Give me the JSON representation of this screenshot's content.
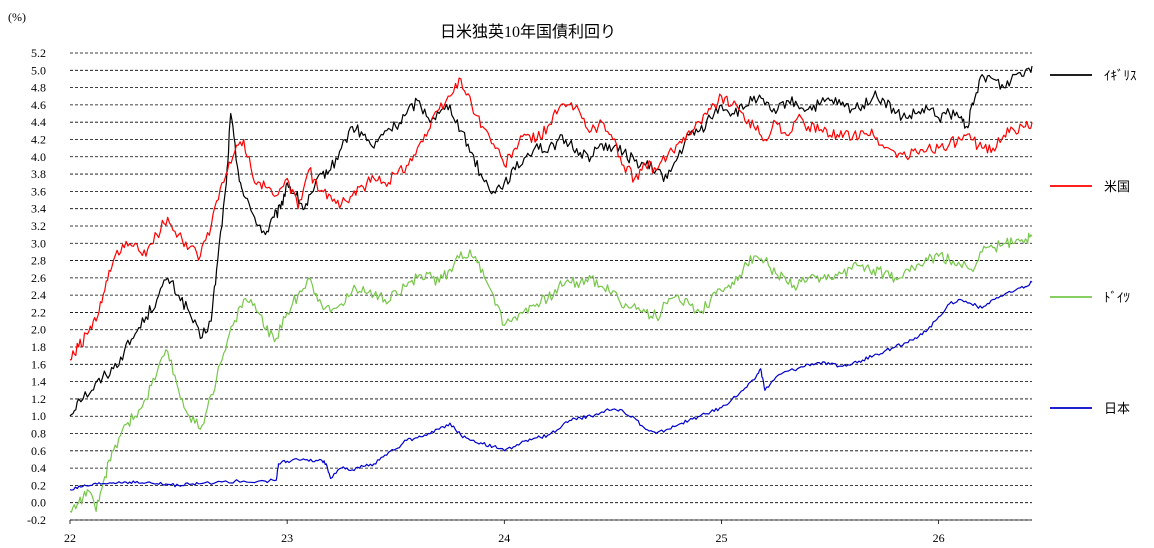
{
  "chart_data": {
    "type": "line",
    "title": "日米独英10年国債利回り",
    "unit_label": "(%)",
    "ylim": [
      -0.2,
      5.2
    ],
    "y_ticks": [
      "5.2",
      "5.0",
      "4.8",
      "4.6",
      "4.4",
      "4.2",
      "4.0",
      "3.8",
      "3.6",
      "3.4",
      "3.2",
      "3.0",
      "2.8",
      "2.6",
      "2.4",
      "2.2",
      "2.0",
      "1.8",
      "1.6",
      "1.4",
      "1.2",
      "1.0",
      "0.8",
      "0.6",
      "0.4",
      "0.2",
      "0.0",
      "-0.2"
    ],
    "x_ticks": [
      "22",
      "23",
      "24",
      "25",
      "26"
    ],
    "xlim": [
      2022.0,
      2026.43
    ],
    "grid": "horizontal dashed",
    "legend_position": "right",
    "series": [
      {
        "name": "ｲｷﾞﾘｽ",
        "color": "#000000",
        "x": [
          2022.0,
          2022.04,
          2022.1,
          2022.15,
          2022.2,
          2022.25,
          2022.3,
          2022.35,
          2022.4,
          2022.45,
          2022.5,
          2022.55,
          2022.6,
          2022.65,
          2022.68,
          2022.72,
          2022.74,
          2022.77,
          2022.8,
          2022.85,
          2022.9,
          2022.94,
          2022.97,
          2023.0,
          2023.04,
          2023.08,
          2023.12,
          2023.16,
          2023.2,
          2023.25,
          2023.3,
          2023.35,
          2023.4,
          2023.45,
          2023.5,
          2023.55,
          2023.6,
          2023.65,
          2023.7,
          2023.75,
          2023.8,
          2023.85,
          2023.9,
          2023.95,
          2024.0,
          2024.05,
          2024.1,
          2024.15,
          2024.2,
          2024.25,
          2024.3,
          2024.35,
          2024.4,
          2024.45,
          2024.5,
          2024.55,
          2024.6,
          2024.65,
          2024.7,
          2024.75,
          2024.8,
          2024.85,
          2024.9,
          2024.95,
          2025.0,
          2025.05,
          2025.1,
          2025.15,
          2025.2,
          2025.25,
          2025.3,
          2025.35,
          2025.4,
          2025.45,
          2025.5,
          2025.55,
          2025.6,
          2025.65,
          2025.7,
          2025.75,
          2025.8,
          2025.85,
          2025.9,
          2025.95,
          2026.0,
          2026.05,
          2026.1,
          2026.13,
          2026.16,
          2026.2,
          2026.25,
          2026.3,
          2026.35,
          2026.4,
          2026.43
        ],
        "values": [
          1.0,
          1.2,
          1.3,
          1.45,
          1.55,
          1.75,
          1.95,
          2.15,
          2.35,
          2.6,
          2.4,
          2.2,
          1.9,
          2.1,
          2.8,
          3.7,
          4.5,
          3.9,
          3.55,
          3.3,
          3.1,
          3.3,
          3.4,
          3.7,
          3.55,
          3.4,
          3.6,
          3.8,
          3.85,
          4.1,
          4.35,
          4.25,
          4.1,
          4.3,
          4.35,
          4.5,
          4.65,
          4.45,
          4.5,
          4.6,
          4.3,
          4.05,
          3.75,
          3.6,
          3.7,
          3.85,
          4.0,
          4.15,
          4.05,
          4.2,
          4.15,
          4.05,
          4.0,
          4.15,
          4.1,
          4.05,
          3.95,
          3.9,
          3.85,
          3.75,
          4.0,
          4.25,
          4.3,
          4.45,
          4.6,
          4.5,
          4.55,
          4.7,
          4.6,
          4.5,
          4.65,
          4.6,
          4.55,
          4.6,
          4.65,
          4.6,
          4.55,
          4.6,
          4.7,
          4.65,
          4.5,
          4.45,
          4.5,
          4.55,
          4.45,
          4.5,
          4.45,
          4.35,
          4.6,
          4.95,
          4.9,
          4.8,
          4.95,
          5.0,
          5.05
        ]
      },
      {
        "name": "米国",
        "color": "#ff0000",
        "x": [
          2022.0,
          2022.04,
          2022.08,
          2022.12,
          2022.16,
          2022.2,
          2022.25,
          2022.3,
          2022.35,
          2022.4,
          2022.45,
          2022.5,
          2022.55,
          2022.6,
          2022.65,
          2022.7,
          2022.75,
          2022.8,
          2022.85,
          2022.9,
          2022.95,
          2023.0,
          2023.05,
          2023.1,
          2023.15,
          2023.2,
          2023.25,
          2023.3,
          2023.35,
          2023.4,
          2023.45,
          2023.5,
          2023.55,
          2023.6,
          2023.65,
          2023.7,
          2023.75,
          2023.8,
          2023.85,
          2023.9,
          2023.95,
          2024.0,
          2024.05,
          2024.1,
          2024.15,
          2024.2,
          2024.25,
          2024.3,
          2024.35,
          2024.4,
          2024.45,
          2024.5,
          2024.55,
          2024.6,
          2024.65,
          2024.7,
          2024.75,
          2024.8,
          2024.85,
          2024.9,
          2024.95,
          2025.0,
          2025.05,
          2025.1,
          2025.15,
          2025.2,
          2025.25,
          2025.3,
          2025.35,
          2025.4,
          2025.45,
          2025.5,
          2025.55,
          2025.6,
          2025.65,
          2025.7,
          2025.75,
          2025.8,
          2025.85,
          2025.9,
          2025.95,
          2026.0,
          2026.05,
          2026.1,
          2026.15,
          2026.2,
          2026.25,
          2026.3,
          2026.35,
          2026.4,
          2026.43
        ],
        "values": [
          1.65,
          1.8,
          1.95,
          2.1,
          2.45,
          2.8,
          2.95,
          3.0,
          2.85,
          3.1,
          3.3,
          3.1,
          2.95,
          2.85,
          3.2,
          3.7,
          4.0,
          4.2,
          3.7,
          3.65,
          3.55,
          3.75,
          3.4,
          3.85,
          3.6,
          3.55,
          3.45,
          3.55,
          3.65,
          3.75,
          3.7,
          3.8,
          3.9,
          4.1,
          4.3,
          4.55,
          4.7,
          4.9,
          4.6,
          4.35,
          4.15,
          3.9,
          4.1,
          4.25,
          4.2,
          4.35,
          4.55,
          4.6,
          4.5,
          4.3,
          4.4,
          4.2,
          3.9,
          3.75,
          3.9,
          3.85,
          4.0,
          4.15,
          4.3,
          4.4,
          4.55,
          4.7,
          4.6,
          4.5,
          4.35,
          4.2,
          4.4,
          4.25,
          4.45,
          4.35,
          4.3,
          4.25,
          4.3,
          4.2,
          4.3,
          4.25,
          4.1,
          4.05,
          4.0,
          4.05,
          4.1,
          4.1,
          4.15,
          4.2,
          4.2,
          4.1,
          4.1,
          4.25,
          4.3,
          4.35,
          4.4
        ]
      },
      {
        "name": "ﾄﾞｲﾂ",
        "color": "#77c74a",
        "x": [
          2022.0,
          2022.04,
          2022.08,
          2022.12,
          2022.16,
          2022.2,
          2022.25,
          2022.3,
          2022.35,
          2022.4,
          2022.45,
          2022.5,
          2022.55,
          2022.6,
          2022.65,
          2022.7,
          2022.75,
          2022.8,
          2022.85,
          2022.9,
          2022.95,
          2023.0,
          2023.05,
          2023.1,
          2023.15,
          2023.2,
          2023.25,
          2023.3,
          2023.35,
          2023.4,
          2023.45,
          2023.5,
          2023.55,
          2023.6,
          2023.65,
          2023.7,
          2023.75,
          2023.8,
          2023.85,
          2023.9,
          2023.95,
          2024.0,
          2024.05,
          2024.1,
          2024.15,
          2024.2,
          2024.25,
          2024.3,
          2024.35,
          2024.4,
          2024.45,
          2024.5,
          2024.55,
          2024.6,
          2024.65,
          2024.7,
          2024.75,
          2024.8,
          2024.85,
          2024.9,
          2024.95,
          2025.0,
          2025.05,
          2025.1,
          2025.15,
          2025.2,
          2025.25,
          2025.3,
          2025.35,
          2025.4,
          2025.45,
          2025.5,
          2025.55,
          2025.6,
          2025.65,
          2025.7,
          2025.75,
          2025.8,
          2025.85,
          2025.9,
          2025.95,
          2026.0,
          2026.05,
          2026.1,
          2026.15,
          2026.2,
          2026.25,
          2026.3,
          2026.35,
          2026.4,
          2026.43
        ],
        "values": [
          -0.1,
          0.0,
          0.15,
          -0.1,
          0.3,
          0.6,
          0.9,
          1.0,
          1.2,
          1.5,
          1.75,
          1.3,
          1.0,
          0.85,
          1.25,
          1.65,
          2.05,
          2.35,
          2.3,
          2.0,
          1.9,
          2.2,
          2.4,
          2.6,
          2.35,
          2.2,
          2.3,
          2.45,
          2.5,
          2.4,
          2.35,
          2.45,
          2.5,
          2.6,
          2.65,
          2.55,
          2.7,
          2.9,
          2.85,
          2.7,
          2.4,
          2.05,
          2.15,
          2.25,
          2.3,
          2.35,
          2.5,
          2.55,
          2.55,
          2.6,
          2.5,
          2.45,
          2.25,
          2.3,
          2.2,
          2.15,
          2.3,
          2.4,
          2.3,
          2.2,
          2.35,
          2.45,
          2.55,
          2.7,
          2.85,
          2.8,
          2.65,
          2.55,
          2.5,
          2.6,
          2.55,
          2.6,
          2.65,
          2.7,
          2.75,
          2.7,
          2.65,
          2.6,
          2.7,
          2.75,
          2.8,
          2.85,
          2.8,
          2.75,
          2.7,
          2.9,
          2.95,
          3.0,
          3.0,
          3.05,
          3.08
        ]
      },
      {
        "name": "日本",
        "color": "#0000cc",
        "x": [
          2022.0,
          2022.05,
          2022.1,
          2022.15,
          2022.2,
          2022.25,
          2022.3,
          2022.35,
          2022.4,
          2022.45,
          2022.5,
          2022.55,
          2022.6,
          2022.7,
          2022.8,
          2022.9,
          2022.95,
          2022.96,
          2023.0,
          2023.05,
          2023.1,
          2023.15,
          2023.18,
          2023.2,
          2023.25,
          2023.3,
          2023.35,
          2023.4,
          2023.45,
          2023.5,
          2023.55,
          2023.6,
          2023.65,
          2023.7,
          2023.75,
          2023.8,
          2023.85,
          2023.9,
          2023.95,
          2024.0,
          2024.05,
          2024.1,
          2024.15,
          2024.2,
          2024.25,
          2024.3,
          2024.35,
          2024.4,
          2024.45,
          2024.5,
          2024.55,
          2024.6,
          2024.65,
          2024.7,
          2024.75,
          2024.8,
          2024.85,
          2024.9,
          2024.95,
          2025.0,
          2025.05,
          2025.1,
          2025.15,
          2025.18,
          2025.2,
          2025.25,
          2025.3,
          2025.35,
          2025.4,
          2025.45,
          2025.5,
          2025.55,
          2025.6,
          2025.65,
          2025.7,
          2025.75,
          2025.8,
          2025.85,
          2025.9,
          2025.95,
          2026.0,
          2026.05,
          2026.1,
          2026.15,
          2026.2,
          2026.25,
          2026.3,
          2026.35,
          2026.4,
          2026.43
        ],
        "values": [
          0.15,
          0.18,
          0.2,
          0.22,
          0.23,
          0.24,
          0.23,
          0.23,
          0.22,
          0.21,
          0.2,
          0.21,
          0.22,
          0.24,
          0.25,
          0.25,
          0.26,
          0.45,
          0.48,
          0.5,
          0.48,
          0.5,
          0.45,
          0.28,
          0.4,
          0.38,
          0.42,
          0.45,
          0.55,
          0.62,
          0.72,
          0.75,
          0.8,
          0.85,
          0.92,
          0.78,
          0.72,
          0.68,
          0.65,
          0.6,
          0.65,
          0.72,
          0.75,
          0.78,
          0.85,
          0.95,
          0.98,
          1.0,
          1.05,
          1.08,
          1.05,
          0.98,
          0.85,
          0.8,
          0.85,
          0.9,
          0.95,
          1.0,
          1.05,
          1.1,
          1.2,
          1.3,
          1.42,
          1.55,
          1.3,
          1.45,
          1.52,
          1.55,
          1.6,
          1.62,
          1.6,
          1.58,
          1.6,
          1.65,
          1.7,
          1.75,
          1.8,
          1.85,
          1.9,
          2.0,
          2.15,
          2.3,
          2.35,
          2.3,
          2.25,
          2.35,
          2.4,
          2.45,
          2.5,
          2.55
        ]
      }
    ]
  }
}
